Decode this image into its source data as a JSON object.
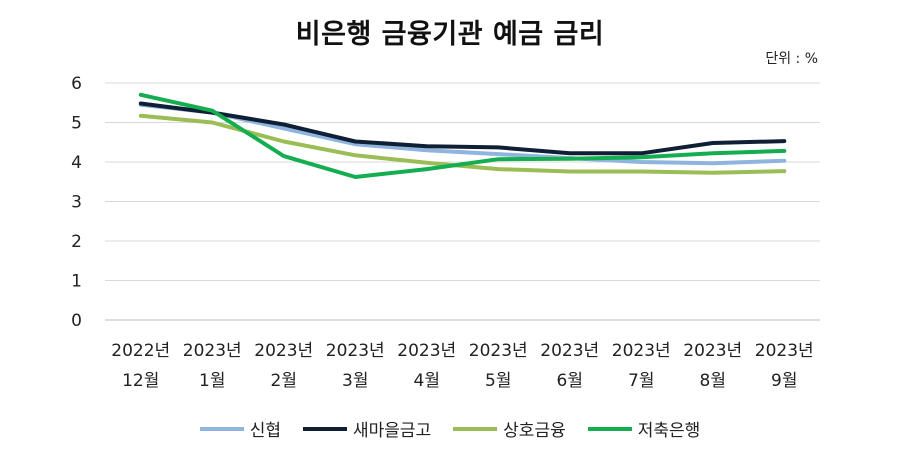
{
  "chart_data": {
    "type": "line",
    "title": "비은행 금융기관 예금 금리",
    "unit_label": "단위 : %",
    "categories": [
      [
        "2022년",
        "12월"
      ],
      [
        "2023년",
        "1월"
      ],
      [
        "2023년",
        "2월"
      ],
      [
        "2023년",
        "3월"
      ],
      [
        "2023년",
        "4월"
      ],
      [
        "2023년",
        "5월"
      ],
      [
        "2023년",
        "6월"
      ],
      [
        "2023년",
        "7월"
      ],
      [
        "2023년",
        "8월"
      ],
      [
        "2023년",
        "9월"
      ]
    ],
    "y_ticks": [
      0,
      1,
      2,
      3,
      4,
      5,
      6
    ],
    "ylim": [
      0,
      6
    ],
    "grid": true,
    "legend_position": "bottom",
    "series": [
      {
        "name": "신협",
        "color": "#8fb4de",
        "values": [
          5.45,
          5.25,
          4.85,
          4.45,
          4.3,
          4.2,
          4.1,
          4.0,
          3.97,
          4.03
        ]
      },
      {
        "name": "새마을금고",
        "color": "#0f1f36",
        "values": [
          5.48,
          5.25,
          4.95,
          4.52,
          4.4,
          4.37,
          4.22,
          4.22,
          4.48,
          4.53
        ]
      },
      {
        "name": "상호금융",
        "color": "#9bbd56",
        "values": [
          5.17,
          5.0,
          4.52,
          4.17,
          3.98,
          3.82,
          3.76,
          3.76,
          3.73,
          3.77
        ]
      },
      {
        "name": "저축은행",
        "color": "#14ad4f",
        "values": [
          5.7,
          5.3,
          4.15,
          3.62,
          3.82,
          4.07,
          4.08,
          4.12,
          4.22,
          4.28
        ]
      }
    ]
  }
}
